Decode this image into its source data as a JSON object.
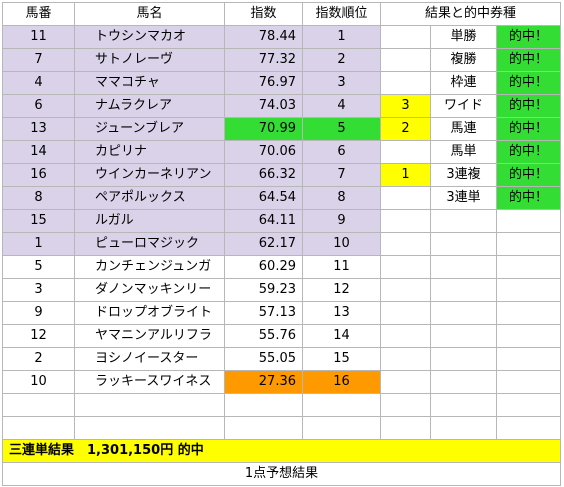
{
  "headers": {
    "umaban": "馬番",
    "bamei": "馬名",
    "shisu": "指数",
    "juni": "指数順位",
    "kekka": "結果と的中券種"
  },
  "horses": [
    {
      "umaban": "11",
      "name": "トウシンマカオ",
      "index": "78.44",
      "rank": "1",
      "highlight": "lav"
    },
    {
      "umaban": "7",
      "name": "サトノレーヴ",
      "index": "77.32",
      "rank": "2",
      "highlight": "lav"
    },
    {
      "umaban": "4",
      "name": "ママコチャ",
      "index": "76.97",
      "rank": "3",
      "highlight": "lav"
    },
    {
      "umaban": "6",
      "name": "ナムラクレア",
      "index": "74.03",
      "rank": "4",
      "highlight": "lav"
    },
    {
      "umaban": "13",
      "name": "ジューンブレア",
      "index": "70.99",
      "rank": "5",
      "highlight": "lav",
      "index_color": "green",
      "rank_color": "green"
    },
    {
      "umaban": "14",
      "name": "カピリナ",
      "index": "70.06",
      "rank": "6",
      "highlight": "lav"
    },
    {
      "umaban": "16",
      "name": "ウインカーネリアン",
      "index": "66.32",
      "rank": "7",
      "highlight": "lav"
    },
    {
      "umaban": "8",
      "name": "ペアポルックス",
      "index": "64.54",
      "rank": "8",
      "highlight": "lav"
    },
    {
      "umaban": "15",
      "name": "ルガル",
      "index": "64.11",
      "rank": "9",
      "highlight": "lav"
    },
    {
      "umaban": "1",
      "name": "ピューロマジック",
      "index": "62.17",
      "rank": "10",
      "highlight": "lav"
    },
    {
      "umaban": "5",
      "name": "カンチェンジュンガ",
      "index": "60.29",
      "rank": "11",
      "highlight": "none"
    },
    {
      "umaban": "3",
      "name": "ダノンマッキンリー",
      "index": "59.23",
      "rank": "12",
      "highlight": "none"
    },
    {
      "umaban": "9",
      "name": "ドロップオブライト",
      "index": "57.13",
      "rank": "13",
      "highlight": "none"
    },
    {
      "umaban": "12",
      "name": "ヤマニンアルリフラ",
      "index": "55.76",
      "rank": "14",
      "highlight": "none"
    },
    {
      "umaban": "2",
      "name": "ヨシノイースター",
      "index": "55.05",
      "rank": "15",
      "highlight": "none"
    },
    {
      "umaban": "10",
      "name": "ラッキースワイネス",
      "index": "27.36",
      "rank": "16",
      "highlight": "none",
      "index_color": "orange",
      "rank_color": "orange"
    },
    {
      "umaban": "",
      "name": "",
      "index": "",
      "rank": "",
      "highlight": "none"
    },
    {
      "umaban": "",
      "name": "",
      "index": "",
      "rank": "",
      "highlight": "none"
    }
  ],
  "results": [
    {
      "place": "",
      "ticket": "単勝",
      "hit": "的中！"
    },
    {
      "place": "",
      "ticket": "複勝",
      "hit": "的中！"
    },
    {
      "place": "",
      "ticket": "枠連",
      "hit": "的中！"
    },
    {
      "place": "3",
      "ticket": "ワイド",
      "hit": "的中！"
    },
    {
      "place": "2",
      "ticket": "馬連",
      "hit": "的中！"
    },
    {
      "place": "",
      "ticket": "馬単",
      "hit": "的中！"
    },
    {
      "place": "1",
      "ticket": "3連複",
      "hit": "的中！"
    },
    {
      "place": "",
      "ticket": "3連単",
      "hit": "的中！"
    }
  ],
  "summary": "三連単結果　1,301,150円 的中",
  "footer": "1点予想結果",
  "colors": {
    "lavender": "#d9d2e9",
    "green": "#33dd33",
    "yellow": "#ffff00",
    "orange": "#ff9900"
  }
}
